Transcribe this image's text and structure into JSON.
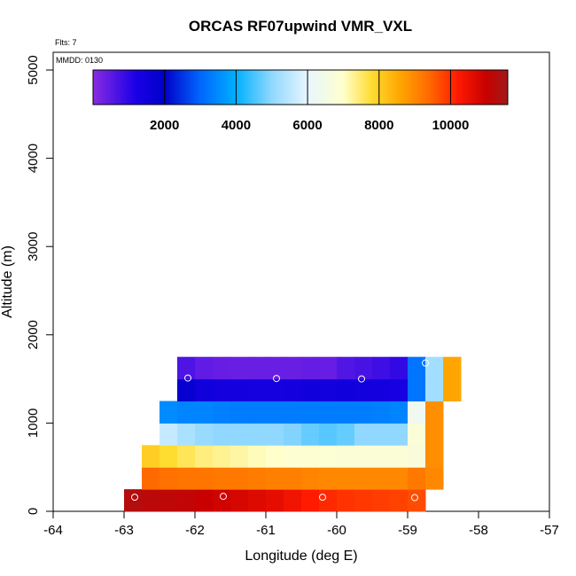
{
  "chart_data": {
    "type": "heatmap",
    "title": "ORCAS RF07upwind VMR_VXL",
    "xlabel": "Longitude (deg E)",
    "ylabel": "Altitude (m)",
    "xlim": [
      -64,
      -57
    ],
    "ylim": [
      0,
      5200
    ],
    "x_ticks": [
      -64,
      -63,
      -62,
      -61,
      -60,
      -59,
      -58,
      -57
    ],
    "y_ticks": [
      0,
      1000,
      2000,
      3000,
      4000,
      5000
    ],
    "annotations": {
      "flts": "Flts: 7",
      "mmdd": "MMDD: 0130"
    },
    "colorbar": {
      "range": [
        0,
        11600
      ],
      "ticks": [
        2000,
        4000,
        6000,
        8000,
        10000
      ],
      "stops": [
        {
          "v": 0,
          "c": "#8a2be2"
        },
        {
          "v": 1200,
          "c": "#1a00e6"
        },
        {
          "v": 2000,
          "c": "#0000c8"
        },
        {
          "v": 3000,
          "c": "#0066ff"
        },
        {
          "v": 4000,
          "c": "#00b0ff"
        },
        {
          "v": 5000,
          "c": "#90d8ff"
        },
        {
          "v": 6000,
          "c": "#e8f6ff"
        },
        {
          "v": 7000,
          "c": "#ffffcc"
        },
        {
          "v": 7800,
          "c": "#ffdc30"
        },
        {
          "v": 8600,
          "c": "#ffa500"
        },
        {
          "v": 9400,
          "c": "#ff6a00"
        },
        {
          "v": 10200,
          "c": "#ff1a00"
        },
        {
          "v": 11000,
          "c": "#c80000"
        },
        {
          "v": 11600,
          "c": "#a01a1a"
        }
      ]
    },
    "rows": [
      {
        "alt_range": [
          0,
          250
        ],
        "lon_start": -63.0,
        "dlon": 0.25,
        "values": [
          11300,
          11200,
          11150,
          11100,
          11000,
          10900,
          10800,
          10700,
          10600,
          10400,
          10200,
          10050,
          9950,
          9900,
          9850,
          9800,
          9700
        ]
      },
      {
        "alt_range": [
          250,
          500
        ],
        "lon_start": -62.75,
        "dlon": 0.25,
        "values": [
          9400,
          9300,
          9250,
          9250,
          9200,
          9200,
          9150,
          9100,
          9100,
          9050,
          9000,
          9000,
          9000,
          9000,
          9000,
          9200,
          9000
        ]
      },
      {
        "alt_range": [
          500,
          750
        ],
        "lon_start": -62.75,
        "dlon": 0.25,
        "values": [
          8000,
          7800,
          7600,
          7400,
          7300,
          7200,
          7100,
          7000,
          6900,
          6900,
          6850,
          6800,
          6800,
          6800,
          6800,
          6700,
          8900
        ]
      },
      {
        "alt_range": [
          750,
          1000
        ],
        "lon_start": -62.5,
        "dlon": 0.25,
        "values": [
          5600,
          5300,
          5100,
          5000,
          5000,
          5000,
          5000,
          4900,
          4700,
          4600,
          4700,
          5000,
          5000,
          5000,
          6800,
          8900
        ]
      },
      {
        "alt_range": [
          1000,
          1250
        ],
        "lon_start": -62.5,
        "dlon": 0.25,
        "values": [
          3500,
          3400,
          3400,
          3350,
          3300,
          3300,
          3300,
          3300,
          3300,
          3300,
          3300,
          3300,
          3350,
          3400,
          6300,
          8900
        ]
      },
      {
        "alt_range": [
          1250,
          1500
        ],
        "lon_start": -62.25,
        "dlon": 0.25,
        "values": [
          1800,
          1500,
          1400,
          1400,
          1350,
          1350,
          1400,
          1500,
          1450,
          1500,
          1450,
          1400,
          1300,
          3200,
          5200,
          8600
        ]
      },
      {
        "alt_range": [
          1500,
          1750
        ],
        "lon_start": -62.25,
        "dlon": 0.25,
        "values": [
          650,
          450,
          380,
          350,
          350,
          350,
          350,
          400,
          380,
          600,
          700,
          800,
          950,
          3200,
          5200,
          8600
        ]
      }
    ],
    "points": [
      {
        "lon": -62.85,
        "alt": 160
      },
      {
        "lon": -61.6,
        "alt": 170
      },
      {
        "lon": -60.2,
        "alt": 160
      },
      {
        "lon": -58.9,
        "alt": 155
      },
      {
        "lon": -62.1,
        "alt": 1510
      },
      {
        "lon": -60.85,
        "alt": 1505
      },
      {
        "lon": -59.65,
        "alt": 1500
      },
      {
        "lon": -58.75,
        "alt": 1680
      }
    ]
  }
}
